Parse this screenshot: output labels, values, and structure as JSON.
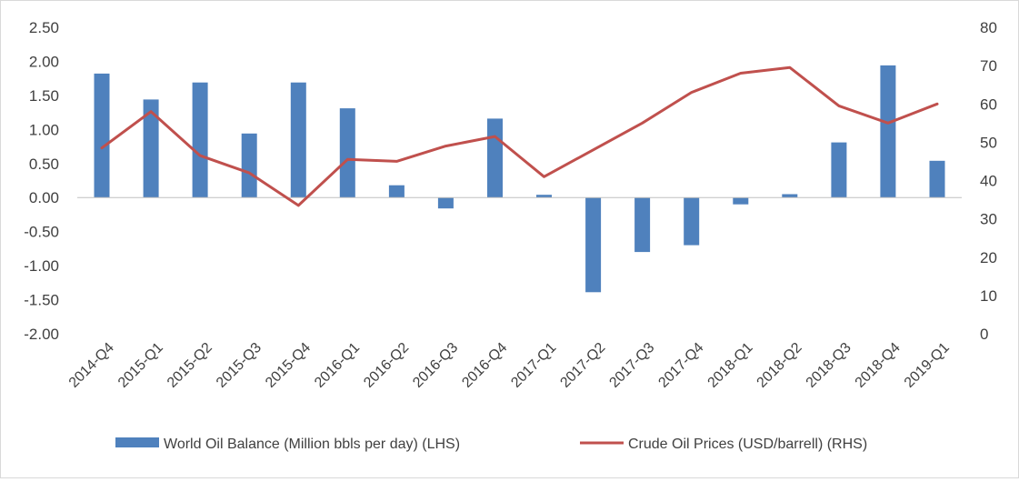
{
  "chart_data": {
    "type": "bar+line",
    "title": "",
    "categories": [
      "2014-Q4",
      "2015-Q1",
      "2015-Q2",
      "2015-Q3",
      "2015-Q4",
      "2016-Q1",
      "2016-Q2",
      "2016-Q3",
      "2016-Q4",
      "2017-Q1",
      "2017-Q2",
      "2017-Q3",
      "2017-Q4",
      "2018-Q1",
      "2018-Q2",
      "2018-Q3",
      "2018-Q4",
      "2019-Q1"
    ],
    "series": [
      {
        "name": "World Oil Balance (Million bbls per day) (LHS)",
        "type": "bar",
        "axis": "left",
        "color": "#4f81bd",
        "values": [
          1.82,
          1.44,
          1.69,
          0.94,
          1.69,
          1.31,
          0.18,
          -0.16,
          1.16,
          0.04,
          -1.39,
          -0.8,
          -0.7,
          -0.1,
          0.05,
          0.81,
          1.94,
          0.54
        ]
      },
      {
        "name": "Crude Oil Prices (USD/barrell) (RHS)",
        "type": "line",
        "axis": "right",
        "color": "#c0504d",
        "values": [
          48.5,
          58,
          46.5,
          42,
          33.5,
          45.5,
          45,
          49,
          51.5,
          41,
          48,
          55,
          63,
          68,
          69.5,
          59.5,
          55,
          60
        ]
      }
    ],
    "y_left": {
      "min": -2.0,
      "max": 2.5,
      "step": 0.5,
      "tick_labels": [
        "-2.00",
        "-1.50",
        "-1.00",
        "-0.50",
        "0.00",
        "0.50",
        "1.00",
        "1.50",
        "2.00",
        "2.50"
      ]
    },
    "y_right": {
      "min": 0,
      "max": 80,
      "step": 10,
      "tick_labels": [
        "0",
        "10",
        "20",
        "30",
        "40",
        "50",
        "60",
        "70",
        "80"
      ]
    },
    "grid": false,
    "legend_placement": "bottom"
  }
}
